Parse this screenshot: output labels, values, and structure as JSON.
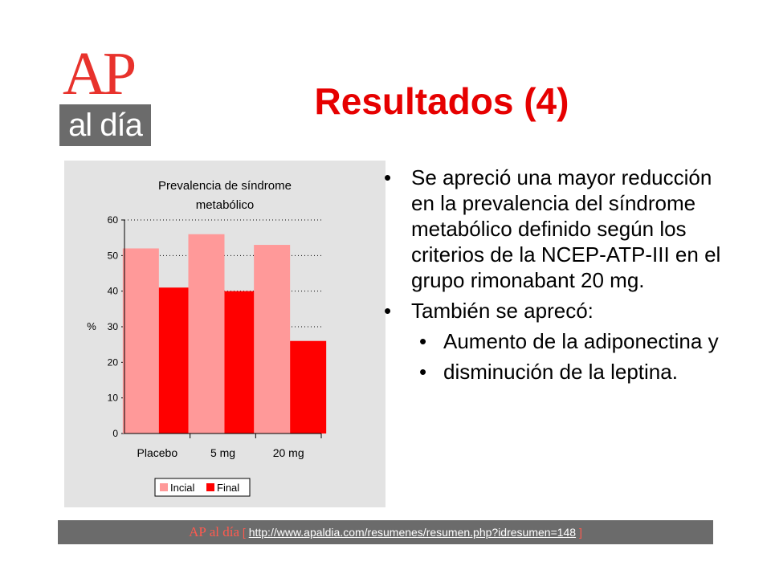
{
  "slide": {
    "title": "Resultados (4)",
    "logo": {
      "ap": "AP",
      "al_dia": "al día"
    },
    "bullets": [
      "Se apreció una mayor reducción en la prevalencia del síndrome metabólico definido según los criterios de la NCEP-ATP-III en el grupo rimonabant 20 mg.",
      "También se aprecó:"
    ],
    "sub_bullets": [
      "Aumento de la adiponectina  y",
      "disminución de la leptina."
    ],
    "footer": {
      "ap": "AP",
      "aldia": "al día",
      "bracket_open": "[",
      "url": "http://www.apaldia.com/resumenes/resumen.php?idresumen=148",
      "bracket_close": "]"
    }
  },
  "colors": {
    "title": "#e60000",
    "inicial": "#ff9999",
    "final": "#ff0000",
    "panel": "#e3e3e3",
    "footer": "#6b6b6b"
  },
  "chart_data": {
    "type": "bar",
    "title_lines": [
      "Prevalencia de síndrome",
      "metabólico"
    ],
    "ylabel": "%",
    "ylim": [
      0,
      60
    ],
    "yticks": [
      0,
      10,
      20,
      30,
      40,
      50,
      60
    ],
    "grid": "dotted horizontal",
    "categories": [
      "Placebo",
      "5 mg",
      "20 mg"
    ],
    "series": [
      {
        "name": "Incial",
        "values": [
          52,
          56,
          53
        ]
      },
      {
        "name": "Final",
        "values": [
          41,
          40,
          26
        ]
      }
    ],
    "legend": "bottom"
  }
}
